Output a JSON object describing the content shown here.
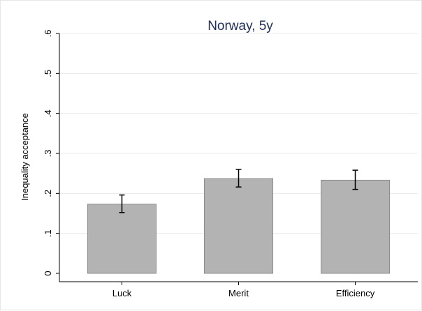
{
  "chart_data": {
    "type": "bar",
    "title": "Norway, 5y",
    "xlabel": "",
    "ylabel": "Inequality acceptance",
    "categories": [
      "Luck",
      "Merit",
      "Efficiency"
    ],
    "values": [
      0.173,
      0.237,
      0.233
    ],
    "error_low": [
      0.152,
      0.216,
      0.21
    ],
    "error_high": [
      0.196,
      0.26,
      0.258
    ],
    "ylim": [
      0,
      0.6
    ],
    "yticks": [
      0,
      0.1,
      0.2,
      0.3,
      0.4,
      0.5,
      0.6
    ],
    "ytick_labels": [
      "0",
      ".1",
      ".2",
      ".3",
      ".4",
      ".5",
      ".6"
    ],
    "grid": true,
    "colors": {
      "bar_fill": "#b3b3b3",
      "bar_stroke": "#8c8c8c",
      "error_bar": "#000000",
      "grid": "#eaeaea",
      "title": "#1f2f5a"
    }
  }
}
